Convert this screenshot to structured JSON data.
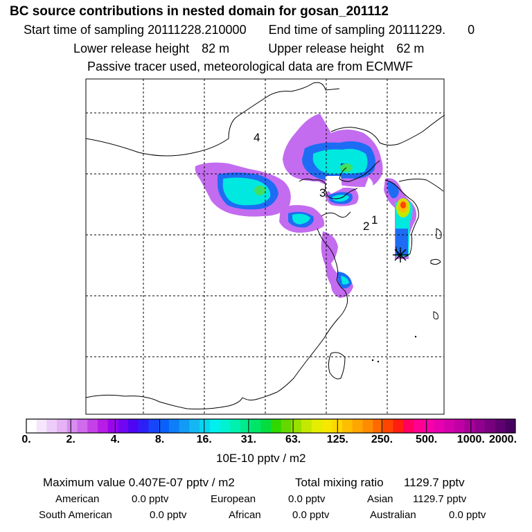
{
  "header": {
    "title": "BC  source contributions in nested domain for gosan_201112",
    "start_label": "Start time of sampling",
    "start_value": "20111228.210000",
    "end_label": "End time of sampling",
    "end_value": "20111229.",
    "end_extra": "0",
    "lower_label": "Lower release height",
    "lower_value": "82 m",
    "upper_label": "Upper release height",
    "upper_value": "62 m",
    "note": "Passive tracer used, meteorological data are from ECMWF"
  },
  "map": {
    "region_labels": [
      "1",
      "2",
      "3",
      "4"
    ],
    "receptor_marker": "gosan-receptor"
  },
  "colorbar": {
    "tick_labels": [
      "0.",
      "2.",
      "4.",
      "8.",
      "16.",
      "31.",
      "63.",
      "125.",
      "250.",
      "500.",
      "1000.",
      "2000."
    ],
    "colors": [
      "#ffffff",
      "#f5e6fb",
      "#ecccf8",
      "#e4b2f5",
      "#d98df0",
      "#cf6bec",
      "#c441e8",
      "#b81de6",
      "#9a06ec",
      "#7306f0",
      "#4c06f4",
      "#2d20f7",
      "#1745f9",
      "#0a60fb",
      "#0d7ef8",
      "#129bf5",
      "#14b7f2",
      "#06d6f0",
      "#00f0ee",
      "#00f2d3",
      "#00f0b0",
      "#00ec8c",
      "#00e468",
      "#04dc40",
      "#2ed800",
      "#64d800",
      "#98e000",
      "#c4e800",
      "#e4ee00",
      "#f6e800",
      "#ffd800",
      "#ffbe00",
      "#ffa600",
      "#ff8c00",
      "#ff6a00",
      "#ff4400",
      "#ff1e10",
      "#ff0060",
      "#ff0090",
      "#f800a8",
      "#e800b0",
      "#d400ac",
      "#c000a4",
      "#a8009a",
      "#90008e",
      "#780080",
      "#600070",
      "#480060"
    ],
    "units": "10E-10 pptv / m2"
  },
  "summary": {
    "max_label": "Maximum value",
    "max_value": "0.407E-07 pptv / m2",
    "total_label": "Total mixing ratio",
    "total_value": "1129.7 pptv",
    "american_label": "American",
    "american_value": "0.0 pptv",
    "european_label": "European",
    "european_value": "0.0 pptv",
    "asian_label": "Asian",
    "asian_value": "1129.7 pptv",
    "south_american_label": "South American",
    "south_american_value": "0.0 pptv",
    "african_label": "African",
    "african_value": "0.0 pptv",
    "australian_label": "Australian",
    "australian_value": "0.0 pptv"
  }
}
